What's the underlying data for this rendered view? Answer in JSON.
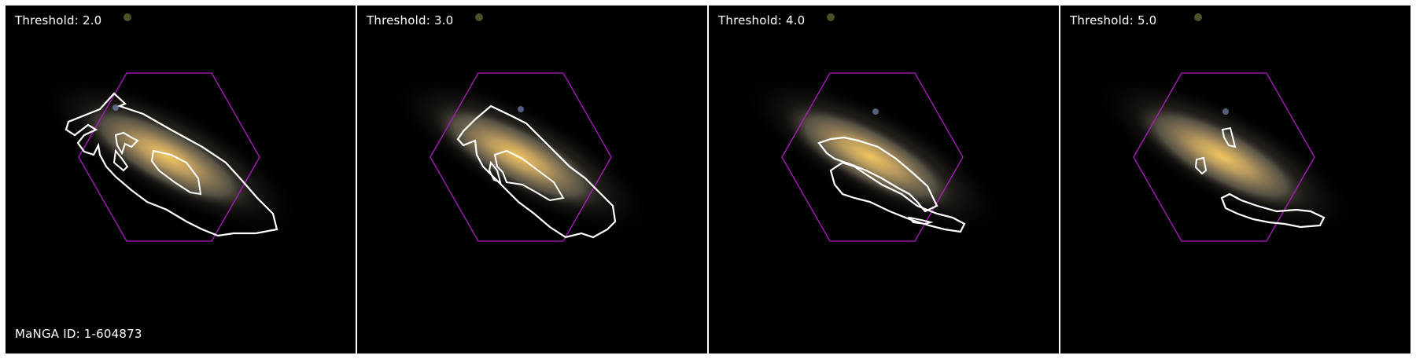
{
  "figure": {
    "manga_label": "MaNGA ID: 1-604873",
    "panels": [
      {
        "threshold_label": "Threshold: 2.0"
      },
      {
        "threshold_label": "Threshold: 3.0"
      },
      {
        "threshold_label": "Threshold: 4.0"
      },
      {
        "threshold_label": "Threshold: 5.0"
      }
    ]
  },
  "colors": {
    "background": "#000000",
    "hexagon": "#b01cc4",
    "contour": "#ffffff",
    "galaxy_core": "#f2c060",
    "galaxy_disk": "#8c7a5a",
    "label_text": "#ffffff"
  }
}
